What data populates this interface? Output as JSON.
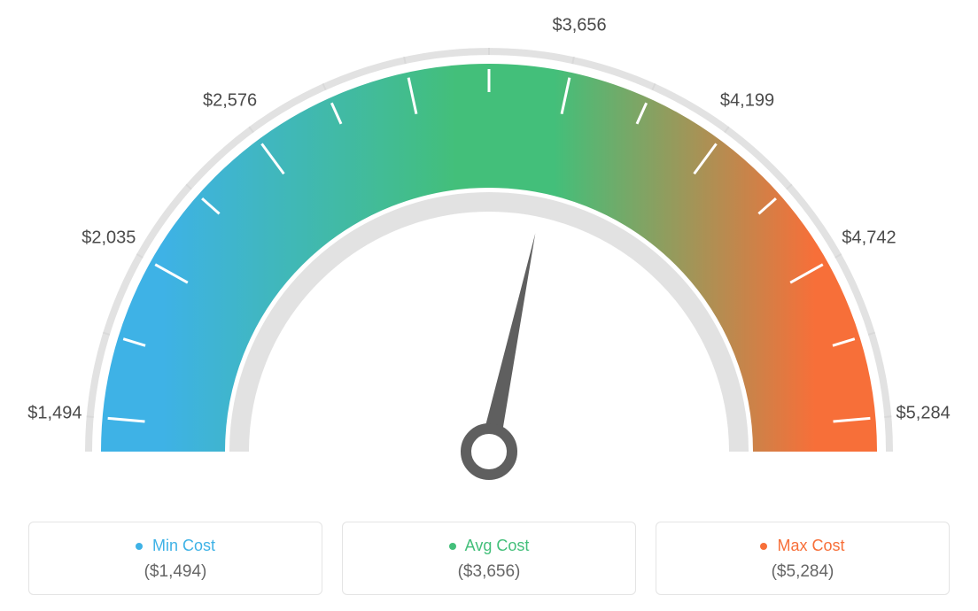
{
  "gauge": {
    "type": "gauge",
    "min_value": 1494,
    "max_value": 5284,
    "avg_value": 3656,
    "needle_value": 3656,
    "tick_values": [
      1494,
      2035,
      2576,
      3656,
      4199,
      4742,
      5284
    ],
    "tick_labels": [
      "$1,494",
      "$2,035",
      "$2,576",
      "$3,656",
      "$4,199",
      "$4,742",
      "$5,284"
    ],
    "color_start": "#3eb2e6",
    "color_mid": "#43bf7a",
    "color_end": "#f76f39",
    "outer_ring_color": "#e2e2e2",
    "inner_ring_color": "#e2e2e2",
    "tick_mark_color": "#ffffff",
    "outer_tick_color": "#d9d9d9",
    "needle_color": "#5f5f5f",
    "background_color": "#ffffff",
    "label_color": "#4a4a4a",
    "label_fontsize": 20
  },
  "legend": {
    "min": {
      "title": "Min Cost",
      "value": "($1,494)",
      "color": "#3eb2e6"
    },
    "avg": {
      "title": "Avg Cost",
      "value": "($3,656)",
      "color": "#43bf7a"
    },
    "max": {
      "title": "Max Cost",
      "value": "($5,284)",
      "color": "#f76f39"
    },
    "card_border_color": "#e4e4e4",
    "value_color": "#666666"
  }
}
